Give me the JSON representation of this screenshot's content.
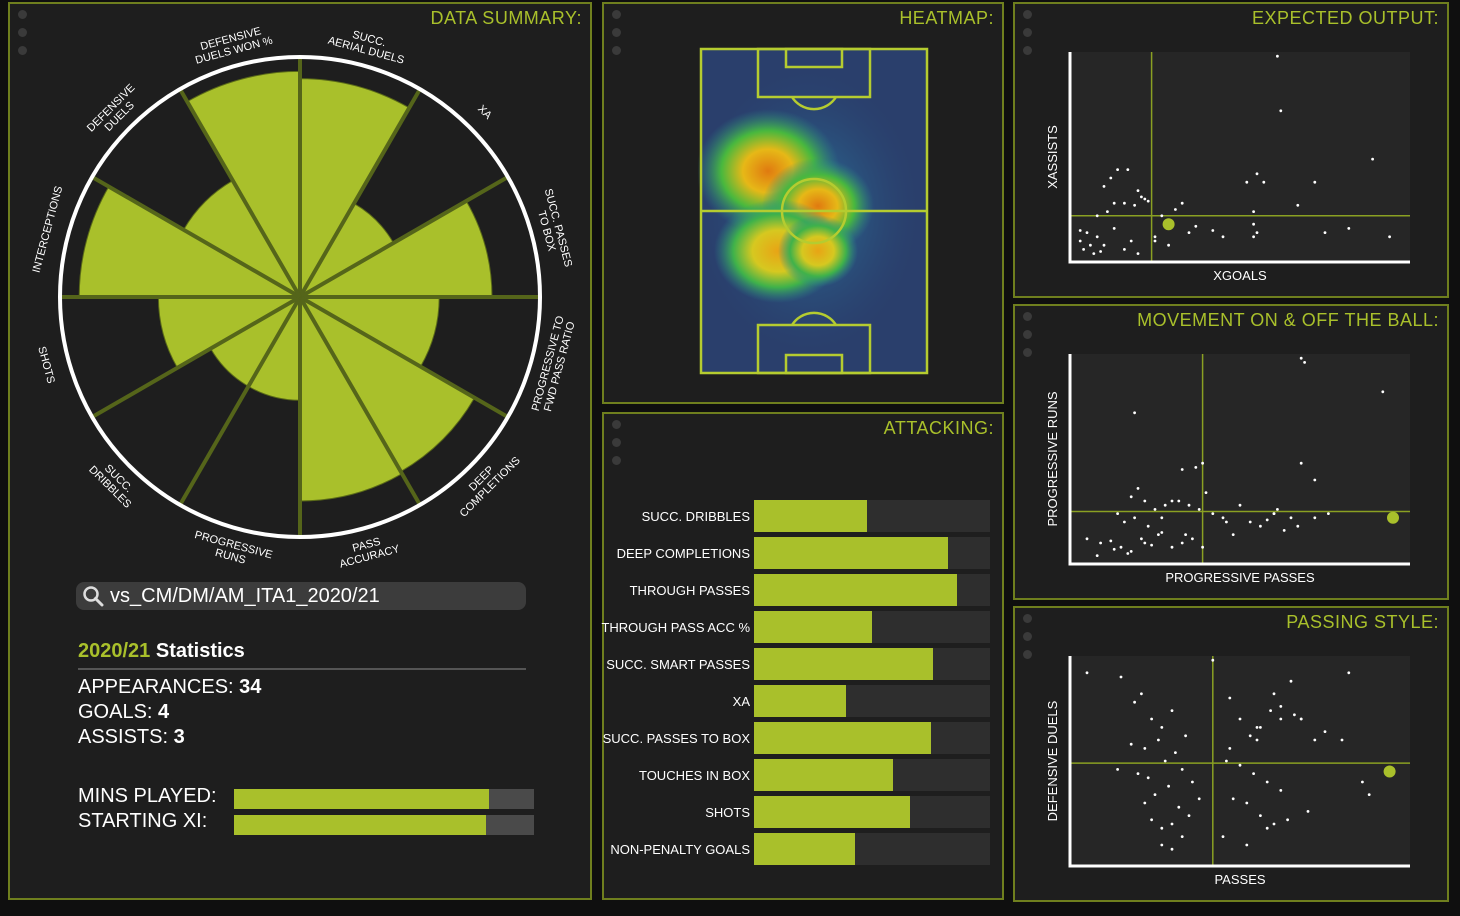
{
  "colors": {
    "accent": "#a9c02b",
    "panel": "#1e1e1e",
    "border": "#6f7f1e"
  },
  "summary": {
    "title": "DATA SUMMARY:",
    "radar": [
      {
        "label": [
          "SUCC.",
          "AERIAL DUELS"
        ],
        "value": 0.91
      },
      {
        "label": [
          "XA"
        ],
        "value": 0.45
      },
      {
        "label": [
          "SUCC. PASSES",
          "TO BOX"
        ],
        "value": 0.8
      },
      {
        "label": [
          "PROGRESSIVE TO",
          "FWD PASS RATIO"
        ],
        "value": 0.58
      },
      {
        "label": [
          "DEEP",
          "COMPLETIONS"
        ],
        "value": 0.84
      },
      {
        "label": [
          "PASS",
          "ACCURACY"
        ],
        "value": 0.85
      },
      {
        "label": [
          "PROGRESSIVE",
          "RUNS"
        ],
        "value": 0.43
      },
      {
        "label": [
          "SUCC.",
          "DRIBBLES"
        ],
        "value": 0.43
      },
      {
        "label": [
          "SHOTS"
        ],
        "value": 0.59
      },
      {
        "label": [
          "INTERCEPTIONS"
        ],
        "value": 0.92
      },
      {
        "label": [
          "DEFENSIVE",
          "DUELS"
        ],
        "value": 0.56
      },
      {
        "label": [
          "DEFENSIVE",
          "DUELS WON %"
        ],
        "value": 0.94
      }
    ],
    "search_value": "vs_CM/DM/AM_ITA1_2020/21",
    "season": "2020/21",
    "stats_label": "Statistics",
    "appearances_label": "APPEARANCES:",
    "appearances": "34",
    "goals_label": "GOALS:",
    "goals": "4",
    "assists_label": "ASSISTS:",
    "assists": "3",
    "mins_label": "MINS PLAYED:",
    "mins_fraction": 0.85,
    "starting_label": "STARTING XI:",
    "starting_fraction": 0.84
  },
  "heatmap": {
    "title": "HEATMAP:"
  },
  "attacking": {
    "title": "ATTACKING:",
    "bars": [
      {
        "label": "SUCC. DRIBBLES",
        "value": 0.48
      },
      {
        "label": "DEEP COMPLETIONS",
        "value": 0.82
      },
      {
        "label": "THROUGH PASSES",
        "value": 0.86
      },
      {
        "label": "THROUGH PASS ACC %",
        "value": 0.5
      },
      {
        "label": "SUCC. SMART PASSES",
        "value": 0.76
      },
      {
        "label": "XA",
        "value": 0.39
      },
      {
        "label": "SUCC. PASSES TO BOX",
        "value": 0.75
      },
      {
        "label": "TOUCHES IN BOX",
        "value": 0.59
      },
      {
        "label": "SHOTS",
        "value": 0.66
      },
      {
        "label": "NON-PENALTY GOALS",
        "value": 0.43
      }
    ]
  },
  "expected": {
    "title": "EXPECTED OUTPUT:",
    "xlabel": "XGOALS",
    "ylabel": "XASSISTS"
  },
  "movement": {
    "title": "MOVEMENT ON & OFF THE BALL:",
    "xlabel": "PROGRESSIVE PASSES",
    "ylabel": "PROGRESSIVE RUNS"
  },
  "passing": {
    "title": "PASSING STYLE:",
    "xlabel": "PASSES",
    "ylabel": "DEFENSIVE DUELS"
  },
  "chart_data": [
    {
      "type": "scatter",
      "title": "EXPECTED OUTPUT:",
      "xlabel": "XGOALS",
      "ylabel": "XASSISTS",
      "xlim": [
        0,
        1
      ],
      "ylim": [
        0,
        1
      ],
      "median_x": 0.24,
      "median_y": 0.22,
      "highlight": {
        "x": 0.29,
        "y": 0.18
      },
      "x": [
        0.1,
        0.12,
        0.14,
        0.17,
        0.2,
        0.22,
        0.11,
        0.13,
        0.16,
        0.19,
        0.21,
        0.23,
        0.03,
        0.05,
        0.08,
        0.03,
        0.06,
        0.09,
        0.04,
        0.07,
        0.1,
        0.16,
        0.2,
        0.18,
        0.08,
        0.13,
        0.25,
        0.27,
        0.31,
        0.33,
        0.37,
        0.25,
        0.29,
        0.35,
        0.42,
        0.45,
        0.54,
        0.54,
        0.54,
        0.55,
        0.67,
        0.75,
        0.72,
        0.82,
        0.94,
        0.61,
        0.52,
        0.57,
        0.55,
        0.89,
        0.62
      ],
      "y": [
        0.36,
        0.4,
        0.44,
        0.44,
        0.34,
        0.3,
        0.24,
        0.28,
        0.28,
        0.27,
        0.31,
        0.29,
        0.15,
        0.14,
        0.12,
        0.1,
        0.08,
        0.05,
        0.06,
        0.04,
        0.08,
        0.06,
        0.04,
        0.1,
        0.22,
        0.16,
        0.12,
        0.22,
        0.25,
        0.28,
        0.17,
        0.1,
        0.08,
        0.14,
        0.15,
        0.12,
        0.24,
        0.18,
        0.12,
        0.14,
        0.27,
        0.14,
        0.38,
        0.16,
        0.12,
        0.98,
        0.38,
        0.38,
        0.42,
        0.49,
        0.72
      ]
    },
    {
      "type": "scatter",
      "title": "MOVEMENT ON & OFF THE BALL:",
      "xlabel": "PROGRESSIVE PASSES",
      "ylabel": "PROGRESSIVE RUNS",
      "xlim": [
        0,
        1
      ],
      "ylim": [
        0,
        1
      ],
      "median_x": 0.39,
      "median_y": 0.25,
      "highlight": {
        "x": 0.95,
        "y": 0.22
      },
      "x": [
        0.18,
        0.2,
        0.22,
        0.25,
        0.28,
        0.3,
        0.14,
        0.16,
        0.19,
        0.23,
        0.27,
        0.32,
        0.35,
        0.38,
        0.36,
        0.34,
        0.33,
        0.39,
        0.42,
        0.45,
        0.4,
        0.37,
        0.05,
        0.09,
        0.12,
        0.15,
        0.18,
        0.21,
        0.24,
        0.27,
        0.3,
        0.08,
        0.13,
        0.17,
        0.22,
        0.26,
        0.53,
        0.56,
        0.58,
        0.6,
        0.61,
        0.63,
        0.65,
        0.5,
        0.48,
        0.46,
        0.6,
        0.76,
        0.67,
        0.72,
        0.19,
        0.33,
        0.39,
        0.68,
        0.92,
        0.68,
        0.69,
        0.72
      ],
      "y": [
        0.32,
        0.36,
        0.3,
        0.26,
        0.28,
        0.3,
        0.24,
        0.2,
        0.22,
        0.18,
        0.22,
        0.3,
        0.28,
        0.26,
        0.12,
        0.14,
        0.1,
        0.08,
        0.24,
        0.22,
        0.34,
        0.46,
        0.12,
        0.1,
        0.11,
        0.08,
        0.06,
        0.12,
        0.09,
        0.15,
        0.08,
        0.04,
        0.07,
        0.05,
        0.1,
        0.14,
        0.2,
        0.18,
        0.21,
        0.24,
        0.26,
        0.16,
        0.22,
        0.28,
        0.14,
        0.2,
        0.24,
        0.24,
        0.18,
        0.22,
        0.72,
        0.45,
        0.48,
        0.48,
        0.82,
        0.98,
        0.96,
        0.4
      ]
    },
    {
      "type": "scatter",
      "title": "PASSING STYLE:",
      "xlabel": "PASSES",
      "ylabel": "DEFENSIVE DUELS",
      "xlim": [
        0,
        1
      ],
      "ylim": [
        0,
        1
      ],
      "median_x": 0.42,
      "median_y": 0.49,
      "highlight": {
        "x": 0.94,
        "y": 0.45
      },
      "x": [
        0.05,
        0.15,
        0.19,
        0.21,
        0.24,
        0.27,
        0.3,
        0.18,
        0.22,
        0.26,
        0.31,
        0.34,
        0.2,
        0.23,
        0.28,
        0.33,
        0.36,
        0.22,
        0.25,
        0.29,
        0.32,
        0.35,
        0.38,
        0.24,
        0.27,
        0.3,
        0.33,
        0.47,
        0.5,
        0.53,
        0.56,
        0.59,
        0.62,
        0.66,
        0.46,
        0.5,
        0.54,
        0.58,
        0.62,
        0.48,
        0.52,
        0.56,
        0.6,
        0.45,
        0.52,
        0.58,
        0.64,
        0.7,
        0.55,
        0.62,
        0.68,
        0.72,
        0.75,
        0.8,
        0.86,
        0.88,
        0.14,
        0.27,
        0.42,
        0.47,
        0.55,
        0.6,
        0.65,
        0.82,
        0.3,
        0.68
      ],
      "y": [
        0.92,
        0.9,
        0.78,
        0.82,
        0.7,
        0.66,
        0.74,
        0.58,
        0.56,
        0.6,
        0.54,
        0.62,
        0.44,
        0.42,
        0.5,
        0.46,
        0.4,
        0.3,
        0.34,
        0.38,
        0.28,
        0.24,
        0.32,
        0.22,
        0.18,
        0.2,
        0.14,
        0.8,
        0.7,
        0.62,
        0.66,
        0.74,
        0.7,
        0.72,
        0.5,
        0.48,
        0.44,
        0.4,
        0.36,
        0.32,
        0.3,
        0.24,
        0.2,
        0.14,
        0.1,
        0.18,
        0.22,
        0.26,
        0.66,
        0.76,
        0.7,
        0.6,
        0.64,
        0.6,
        0.4,
        0.34,
        0.46,
        0.1,
        0.98,
        0.56,
        0.6,
        0.82,
        0.88,
        0.92,
        0.08,
        0.7
      ]
    }
  ]
}
